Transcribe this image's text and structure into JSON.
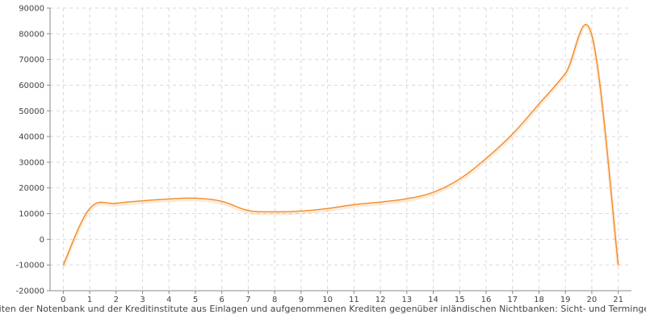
{
  "chart_data": {
    "type": "line",
    "title": "",
    "xlabel": "keiten der Notenbank und der Kreditinstitute aus Einlagen und aufgenommenen Krediten gegenüber inländischen Nichtbanken: Sicht- und Termingeld",
    "ylabel": "",
    "xlim": [
      -0.5,
      21.5
    ],
    "ylim": [
      -20000,
      90000
    ],
    "x_ticks": [
      "0",
      "1",
      "2",
      "3",
      "4",
      "5",
      "6",
      "7",
      "8",
      "9",
      "10",
      "11",
      "12",
      "13",
      "14",
      "15",
      "16",
      "17",
      "18",
      "19",
      "20",
      "21"
    ],
    "y_ticks": [
      "-20000",
      "-10000",
      "0",
      "10000",
      "20000",
      "30000",
      "40000",
      "50000",
      "60000",
      "70000",
      "80000",
      "90000"
    ],
    "grid": true,
    "series": [
      {
        "color": "#f28c28",
        "x": [
          0,
          1,
          2,
          3,
          4,
          5,
          6,
          7,
          8,
          9,
          10,
          11,
          12,
          13,
          14,
          15,
          16,
          17,
          18,
          19,
          20,
          21
        ],
        "y": [
          -10000,
          12000,
          14000,
          15000,
          15700,
          16000,
          14800,
          11200,
          10700,
          11000,
          12000,
          13500,
          14500,
          15800,
          18300,
          23500,
          31500,
          41000,
          52700,
          64600,
          79500,
          -10000
        ]
      }
    ]
  }
}
